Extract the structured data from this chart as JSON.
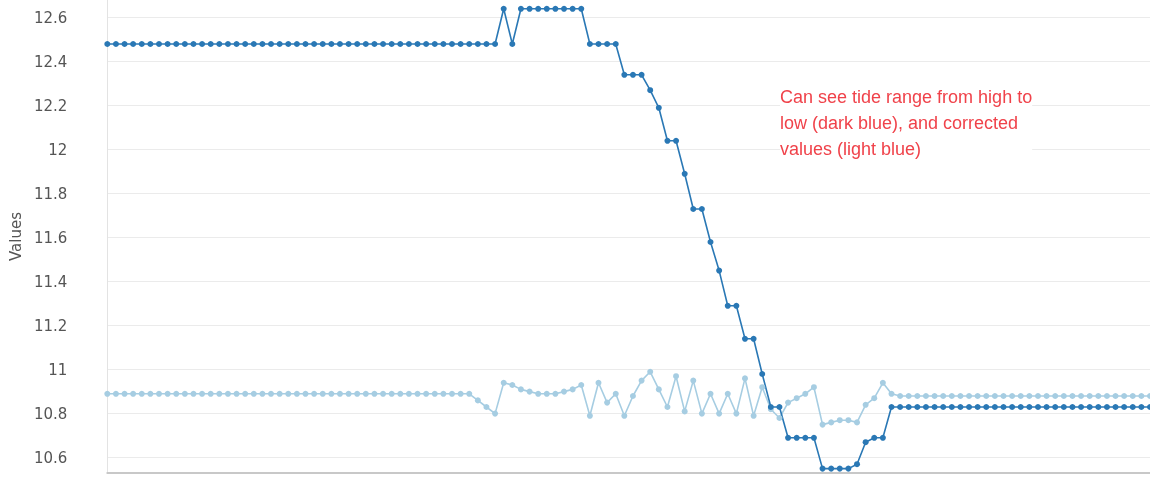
{
  "chart_data": {
    "type": "line",
    "ylabel": "Values",
    "annotations": [
      "Can see tide range from high to\nlow (dark blue), and corrected\nvalues (light blue)"
    ],
    "categories": [
      null,
      null,
      null,
      null,
      null,
      null,
      null,
      null,
      null,
      null,
      null,
      null,
      null,
      null,
      null,
      null,
      null,
      null,
      null,
      null,
      null,
      null,
      null,
      null,
      null,
      null,
      null,
      null,
      null,
      null,
      null,
      null,
      null,
      null,
      null,
      null,
      null,
      null,
      null,
      null,
      null,
      null,
      null,
      null,
      null,
      null,
      null,
      null,
      null,
      null,
      null,
      null,
      null,
      null,
      null,
      null,
      null,
      null,
      null,
      null,
      null,
      null,
      null,
      null,
      null,
      null,
      null,
      null,
      null,
      null,
      null,
      null,
      null,
      null,
      null,
      null,
      null,
      null,
      null,
      null,
      null,
      null,
      null,
      null,
      null,
      null,
      null,
      null,
      null,
      null,
      null,
      null,
      null,
      null,
      null,
      null,
      null,
      null,
      null,
      null,
      null,
      null,
      null,
      null,
      null,
      null,
      null,
      null,
      null,
      null,
      null,
      null,
      null,
      null,
      null,
      null,
      null,
      null,
      null,
      null,
      null,
      null
    ],
    "ylim": [
      10.53,
      12.68
    ],
    "yticks": [
      10.6,
      10.8,
      11,
      11.2,
      11.4,
      11.6,
      11.8,
      12,
      12.2,
      12.4,
      12.6
    ],
    "grid": "y",
    "tick_labels": "y",
    "marker": "circle",
    "line_style": "solid",
    "series": [
      {
        "color": "#a6cde2",
        "values": [
          10.89,
          10.89,
          10.89,
          10.89,
          10.89,
          10.89,
          10.89,
          10.89,
          10.89,
          10.89,
          10.89,
          10.89,
          10.89,
          10.89,
          10.89,
          10.89,
          10.89,
          10.89,
          10.89,
          10.89,
          10.89,
          10.89,
          10.89,
          10.89,
          10.89,
          10.89,
          10.89,
          10.89,
          10.89,
          10.89,
          10.89,
          10.89,
          10.89,
          10.89,
          10.89,
          10.89,
          10.89,
          10.89,
          10.89,
          10.89,
          10.89,
          10.89,
          10.89,
          10.86,
          10.83,
          10.8,
          10.94,
          10.93,
          10.91,
          10.9,
          10.89,
          10.89,
          10.89,
          10.9,
          10.91,
          10.93,
          10.79,
          10.94,
          10.85,
          10.89,
          10.79,
          10.88,
          10.95,
          10.99,
          10.91,
          10.83,
          10.97,
          10.81,
          10.95,
          10.8,
          10.89,
          10.8,
          10.89,
          10.8,
          10.96,
          10.79,
          10.92,
          10.82,
          10.78,
          10.85,
          10.87,
          10.89,
          10.92,
          10.75,
          10.76,
          10.77,
          10.77,
          10.76,
          10.84,
          10.87,
          10.94,
          10.89,
          10.88,
          10.88,
          10.88,
          10.88,
          10.88,
          10.88,
          10.88,
          10.88,
          10.88,
          10.88,
          10.88,
          10.88,
          10.88,
          10.88,
          10.88,
          10.88,
          10.88,
          10.88,
          10.88,
          10.88,
          10.88,
          10.88,
          10.88,
          10.88,
          10.88,
          10.88,
          10.88,
          10.88,
          10.88,
          10.88
        ]
      },
      {
        "color": "#2a78b5",
        "values": [
          12.48,
          12.48,
          12.48,
          12.48,
          12.48,
          12.48,
          12.48,
          12.48,
          12.48,
          12.48,
          12.48,
          12.48,
          12.48,
          12.48,
          12.48,
          12.48,
          12.48,
          12.48,
          12.48,
          12.48,
          12.48,
          12.48,
          12.48,
          12.48,
          12.48,
          12.48,
          12.48,
          12.48,
          12.48,
          12.48,
          12.48,
          12.48,
          12.48,
          12.48,
          12.48,
          12.48,
          12.48,
          12.48,
          12.48,
          12.48,
          12.48,
          12.48,
          12.48,
          12.48,
          12.48,
          12.48,
          12.64,
          12.48,
          12.64,
          12.64,
          12.64,
          12.64,
          12.64,
          12.64,
          12.64,
          12.64,
          12.48,
          12.48,
          12.48,
          12.48,
          12.34,
          12.34,
          12.34,
          12.27,
          12.19,
          12.04,
          12.04,
          11.89,
          11.73,
          11.73,
          11.58,
          11.45,
          11.29,
          11.29,
          11.14,
          11.14,
          10.98,
          10.83,
          10.83,
          10.69,
          10.69,
          10.69,
          10.69,
          10.55,
          10.55,
          10.55,
          10.55,
          10.57,
          10.67,
          10.69,
          10.69,
          10.83,
          10.83,
          10.83,
          10.83,
          10.83,
          10.83,
          10.83,
          10.83,
          10.83,
          10.83,
          10.83,
          10.83,
          10.83,
          10.83,
          10.83,
          10.83,
          10.83,
          10.83,
          10.83,
          10.83,
          10.83,
          10.83,
          10.83,
          10.83,
          10.83,
          10.83,
          10.83,
          10.83,
          10.83,
          10.83,
          10.83
        ]
      }
    ]
  }
}
